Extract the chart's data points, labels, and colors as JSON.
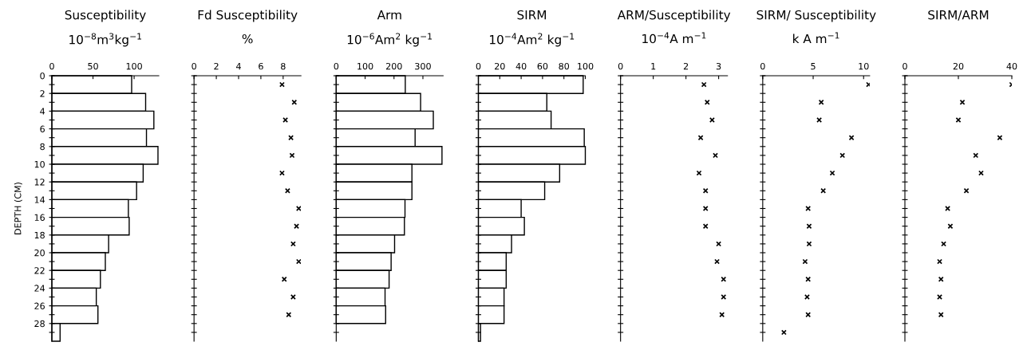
{
  "chart_data": [
    {
      "type": "bar",
      "orientation": "horizontal",
      "title": "Susceptibility",
      "subtitle": "10$^{−8}$m$^{3}$kg$^{−1}$",
      "ylabel": "DEPTH (CM)",
      "x": [
        1,
        3,
        5,
        7,
        9,
        11,
        13,
        15,
        17,
        19,
        21,
        23,
        25,
        27,
        29
      ],
      "values": [
        97,
        114,
        124,
        115,
        129,
        111,
        103,
        93,
        94,
        69,
        65,
        59,
        54,
        56,
        10
      ],
      "color": "#ffffff",
      "xlim": [
        0,
        130
      ],
      "xticks": [
        0,
        50,
        100
      ],
      "ylim": [
        30,
        0
      ],
      "yticks": [
        0,
        {
          "value": 1,
          "label": null
        },
        2,
        {
          "value": 3,
          "label": null
        },
        4,
        {
          "value": 5,
          "label": null
        },
        6,
        {
          "value": 7,
          "label": null
        },
        8,
        {
          "value": 9,
          "label": null
        },
        10,
        {
          "value": 11,
          "label": null
        },
        12,
        {
          "value": 13,
          "label": null
        },
        14,
        {
          "value": 15,
          "label": null
        },
        16,
        {
          "value": 17,
          "label": null
        },
        18,
        {
          "value": 19,
          "label": null
        },
        20,
        {
          "value": 21,
          "label": null
        },
        22,
        {
          "value": 23,
          "label": null
        },
        24,
        {
          "value": 25,
          "label": null
        },
        26,
        {
          "value": 27,
          "label": null
        },
        28,
        {
          "value": 29,
          "label": null
        }
      ],
      "grid": false
    },
    {
      "type": "scatter",
      "orientation": "horizontal",
      "title": "Fd Susceptibility",
      "subtitle": "%",
      "x": [
        1,
        3,
        5,
        7,
        9,
        11,
        13,
        15,
        17,
        19,
        21,
        23,
        25,
        27
      ],
      "values": [
        7.9,
        9.0,
        8.2,
        8.7,
        8.8,
        7.9,
        8.4,
        9.4,
        9.2,
        8.9,
        9.4,
        8.1,
        8.9,
        8.5
      ],
      "color": "#000000",
      "marker": "cross",
      "xlim": [
        0,
        9.6
      ],
      "xticks": [
        0,
        2,
        4,
        6,
        8
      ],
      "ylim": [
        30,
        0
      ],
      "yticks": [
        0,
        {
          "value": 1,
          "label": null
        },
        2,
        {
          "value": 3,
          "label": null
        },
        4,
        {
          "value": 5,
          "label": null
        },
        6,
        {
          "value": 7,
          "label": null
        },
        8,
        {
          "value": 9,
          "label": null
        },
        10,
        {
          "value": 11,
          "label": null
        },
        12,
        {
          "value": 13,
          "label": null
        },
        14,
        {
          "value": 15,
          "label": null
        },
        16,
        {
          "value": 17,
          "label": null
        },
        18,
        {
          "value": 19,
          "label": null
        },
        20,
        {
          "value": 21,
          "label": null
        },
        22,
        {
          "value": 23,
          "label": null
        },
        24,
        {
          "value": 25,
          "label": null
        },
        26,
        {
          "value": 27,
          "label": null
        },
        28,
        {
          "value": 29,
          "label": null
        }
      ],
      "tick_labels": "x",
      "grid": false
    },
    {
      "type": "bar",
      "orientation": "horizontal",
      "title": "Arm",
      "subtitle": "10$^{−6}$Am$^{2}$ kg$^{−1}$",
      "x": [
        1,
        3,
        5,
        7,
        9,
        11,
        13,
        15,
        17,
        19,
        21,
        23,
        25,
        27
      ],
      "values": [
        239,
        292,
        336,
        273,
        366,
        262,
        262,
        238,
        236,
        202,
        190,
        183,
        169,
        171
      ],
      "color": "#ffffff",
      "xlim": [
        0,
        370
      ],
      "xticks": [
        0,
        100,
        200,
        300
      ],
      "ylim": [
        30,
        0
      ],
      "yticks": [
        0,
        {
          "value": 1,
          "label": null
        },
        2,
        {
          "value": 3,
          "label": null
        },
        4,
        {
          "value": 5,
          "label": null
        },
        6,
        {
          "value": 7,
          "label": null
        },
        8,
        {
          "value": 9,
          "label": null
        },
        10,
        {
          "value": 11,
          "label": null
        },
        12,
        {
          "value": 13,
          "label": null
        },
        14,
        {
          "value": 15,
          "label": null
        },
        16,
        {
          "value": 17,
          "label": null
        },
        18,
        {
          "value": 19,
          "label": null
        },
        20,
        {
          "value": 21,
          "label": null
        },
        22,
        {
          "value": 23,
          "label": null
        },
        24,
        {
          "value": 25,
          "label": null
        },
        26,
        {
          "value": 27,
          "label": null
        },
        28,
        {
          "value": 29,
          "label": null
        }
      ],
      "tick_labels": "x",
      "grid": false
    },
    {
      "type": "bar",
      "orientation": "horizontal",
      "title": "SIRM",
      "subtitle": "10$^{−4}$Am$^{2}$ kg$^{−1}$",
      "x": [
        1,
        3,
        5,
        7,
        9,
        11,
        13,
        15,
        17,
        19,
        21,
        23,
        25,
        27,
        29
      ],
      "values": [
        98,
        64,
        68,
        99,
        100,
        76,
        62,
        40,
        43,
        31,
        26,
        26,
        24,
        24,
        2
      ],
      "color": "#ffffff",
      "xlim": [
        0,
        100
      ],
      "xticks": [
        0,
        20,
        40,
        60,
        80,
        100
      ],
      "ylim": [
        30,
        0
      ],
      "yticks": [
        0,
        {
          "value": 1,
          "label": null
        },
        2,
        {
          "value": 3,
          "label": null
        },
        4,
        {
          "value": 5,
          "label": null
        },
        6,
        {
          "value": 7,
          "label": null
        },
        8,
        {
          "value": 9,
          "label": null
        },
        10,
        {
          "value": 11,
          "label": null
        },
        12,
        {
          "value": 13,
          "label": null
        },
        14,
        {
          "value": 15,
          "label": null
        },
        16,
        {
          "value": 17,
          "label": null
        },
        18,
        {
          "value": 19,
          "label": null
        },
        20,
        {
          "value": 21,
          "label": null
        },
        22,
        {
          "value": 23,
          "label": null
        },
        24,
        {
          "value": 25,
          "label": null
        },
        26,
        {
          "value": 27,
          "label": null
        },
        28,
        {
          "value": 29,
          "label": null
        }
      ],
      "tick_labels": "x",
      "grid": false
    },
    {
      "type": "scatter",
      "orientation": "horizontal",
      "title": "ARM/Susceptibility",
      "subtitle": "10$^{−4}$A m$^{−1}$",
      "x": [
        1,
        3,
        5,
        7,
        9,
        11,
        13,
        15,
        17,
        19,
        21,
        23,
        25,
        27
      ],
      "values": [
        2.55,
        2.65,
        2.8,
        2.45,
        2.9,
        2.4,
        2.6,
        2.6,
        2.6,
        3.0,
        2.95,
        3.15,
        3.15,
        3.1
      ],
      "color": "#000000",
      "marker": "cross",
      "xlim": [
        0,
        3.27
      ],
      "xticks": [
        0,
        1,
        2,
        3
      ],
      "ylim": [
        30,
        0
      ],
      "yticks": [
        0,
        {
          "value": 1,
          "label": null
        },
        2,
        {
          "value": 3,
          "label": null
        },
        4,
        {
          "value": 5,
          "label": null
        },
        6,
        {
          "value": 7,
          "label": null
        },
        8,
        {
          "value": 9,
          "label": null
        },
        10,
        {
          "value": 11,
          "label": null
        },
        12,
        {
          "value": 13,
          "label": null
        },
        14,
        {
          "value": 15,
          "label": null
        },
        16,
        {
          "value": 17,
          "label": null
        },
        18,
        {
          "value": 19,
          "label": null
        },
        20,
        {
          "value": 21,
          "label": null
        },
        22,
        {
          "value": 23,
          "label": null
        },
        24,
        {
          "value": 25,
          "label": null
        },
        26,
        {
          "value": 27,
          "label": null
        },
        28,
        {
          "value": 29,
          "label": null
        }
      ],
      "tick_labels": "x",
      "grid": false
    },
    {
      "type": "scatter",
      "orientation": "horizontal",
      "title": "SIRM/ Susceptibility",
      "subtitle": "k A m$^{−1}$",
      "x": [
        1,
        3,
        5,
        7,
        9,
        11,
        13,
        15,
        17,
        19,
        21,
        23,
        25,
        27,
        29
      ],
      "values": [
        10.5,
        5.8,
        5.6,
        8.8,
        7.9,
        6.9,
        6.0,
        4.5,
        4.6,
        4.6,
        4.2,
        4.5,
        4.4,
        4.5,
        2.1
      ],
      "color": "#000000",
      "marker": "cross",
      "xlim": [
        0,
        10.6
      ],
      "xticks": [
        0,
        5,
        10
      ],
      "ylim": [
        30,
        0
      ],
      "yticks": [
        0,
        {
          "value": 1,
          "label": null
        },
        2,
        {
          "value": 3,
          "label": null
        },
        4,
        {
          "value": 5,
          "label": null
        },
        6,
        {
          "value": 7,
          "label": null
        },
        8,
        {
          "value": 9,
          "label": null
        },
        10,
        {
          "value": 11,
          "label": null
        },
        12,
        {
          "value": 13,
          "label": null
        },
        14,
        {
          "value": 15,
          "label": null
        },
        16,
        {
          "value": 17,
          "label": null
        },
        18,
        {
          "value": 19,
          "label": null
        },
        20,
        {
          "value": 21,
          "label": null
        },
        22,
        {
          "value": 23,
          "label": null
        },
        24,
        {
          "value": 25,
          "label": null
        },
        26,
        {
          "value": 27,
          "label": null
        },
        28,
        {
          "value": 29,
          "label": null
        }
      ],
      "tick_labels": "x",
      "grid": false
    },
    {
      "type": "scatter",
      "orientation": "horizontal",
      "title": "SIRM/ARM",
      "x": [
        1,
        3,
        5,
        7,
        9,
        11,
        13,
        15,
        17,
        19,
        21,
        23,
        25,
        27
      ],
      "values": [
        40,
        21.5,
        20,
        35.5,
        26.5,
        28.5,
        23,
        16,
        17,
        14.5,
        13,
        13.5,
        13,
        13.5
      ],
      "color": "#000000",
      "marker": "cross",
      "xlim": [
        0,
        40
      ],
      "xticks": [
        0,
        20,
        40
      ],
      "ylim": [
        30,
        0
      ],
      "yticks": [
        0,
        {
          "value": 1,
          "label": null
        },
        2,
        {
          "value": 3,
          "label": null
        },
        4,
        {
          "value": 5,
          "label": null
        },
        6,
        {
          "value": 7,
          "label": null
        },
        8,
        {
          "value": 9,
          "label": null
        },
        10,
        {
          "value": 11,
          "label": null
        },
        12,
        {
          "value": 13,
          "label": null
        },
        14,
        {
          "value": 15,
          "label": null
        },
        16,
        {
          "value": 17,
          "label": null
        },
        18,
        {
          "value": 19,
          "label": null
        },
        20,
        {
          "value": 21,
          "label": null
        },
        22,
        {
          "value": 23,
          "label": null
        },
        24,
        {
          "value": 25,
          "label": null
        },
        26,
        {
          "value": 27,
          "label": null
        },
        28,
        {
          "value": 29,
          "label": null
        }
      ],
      "tick_labels": "x",
      "grid": false
    }
  ]
}
